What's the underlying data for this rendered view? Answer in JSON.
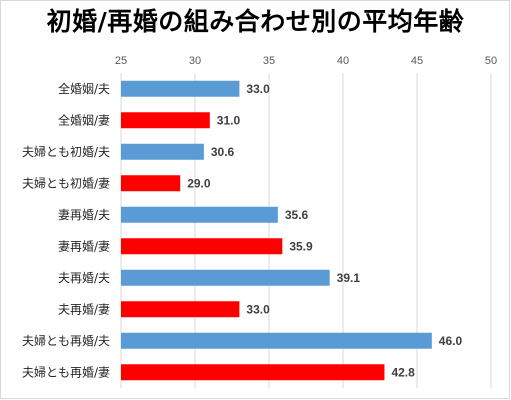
{
  "chart_data": {
    "type": "bar",
    "orientation": "horizontal",
    "title": "初婚/再婚の組み合わせ別の平均年齢",
    "xlim": [
      25,
      50
    ],
    "ticks": [
      25,
      30,
      35,
      40,
      45,
      50
    ],
    "grid": true,
    "legend": "none",
    "categories": [
      "全婚姻/夫",
      "全婚姻/妻",
      "夫婦とも初婚/夫",
      "夫婦とも初婚/妻",
      "妻再婚/夫",
      "妻再婚/妻",
      "夫再婚/夫",
      "夫再婚/妻",
      "夫婦とも再婚/夫",
      "夫婦とも再婚/妻"
    ],
    "values": [
      33.0,
      31.0,
      30.6,
      29.0,
      35.6,
      35.9,
      39.1,
      33.0,
      46.0,
      42.8
    ],
    "value_labels": [
      "33.0",
      "31.0",
      "30.6",
      "29.0",
      "35.6",
      "35.9",
      "39.1",
      "33.0",
      "46.0",
      "42.8"
    ],
    "colors": {
      "husband": "#5b9bd5",
      "wife": "#ff0000",
      "grid": "#d9d9d9"
    }
  }
}
